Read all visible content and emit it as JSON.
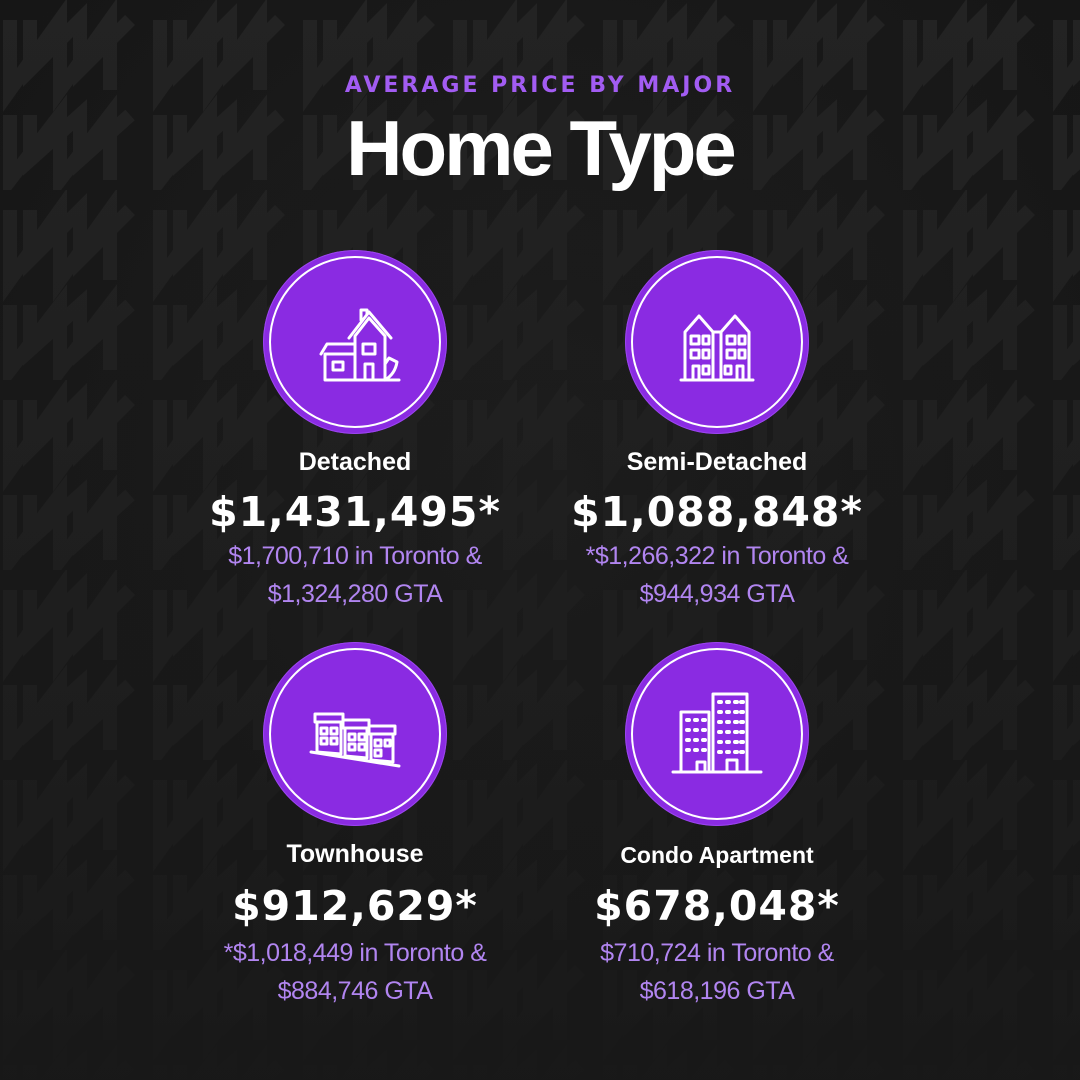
{
  "header": {
    "subtitle": "AVERAGE PRICE BY MAJOR",
    "title": "Home Type"
  },
  "colors": {
    "accent": "#8a2be2",
    "subtitle": "#a25cf2",
    "note": "#b185f0",
    "background": "#181818"
  },
  "cards": [
    {
      "icon": "detached-house-icon",
      "label": "Detached",
      "price": "$1,431,495*",
      "note_line1": "$1,700,710 in Toronto  &",
      "note_line2": "$1,324,280 GTA"
    },
    {
      "icon": "semi-detached-house-icon",
      "label": "Semi-Detached",
      "price": "$1,088,848*",
      "note_line1": "*$1,266,322 in Toronto &",
      "note_line2": "$944,934 GTA"
    },
    {
      "icon": "townhouse-icon",
      "label": "Townhouse",
      "price": "$912,629*",
      "note_line1": "*$1,018,449 in Toronto &",
      "note_line2": "$884,746 GTA"
    },
    {
      "icon": "condo-apartment-icon",
      "label": "Condo Apartment",
      "price": "$678,048*",
      "note_line1": "$710,724 in Toronto &",
      "note_line2": "$618,196 GTA"
    }
  ]
}
